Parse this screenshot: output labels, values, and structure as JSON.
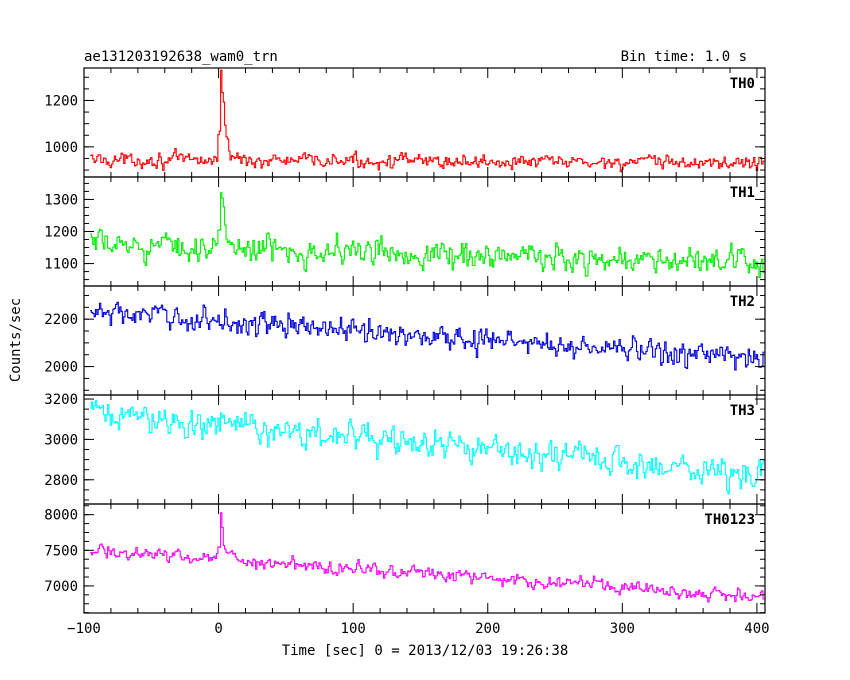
{
  "header": {
    "title": "ae131203192638_wam0_trn",
    "bin_time": "Bin time: 1.0 s"
  },
  "chart_data": {
    "type": "line",
    "xlabel": "Time [sec] 0 = 2013/12/03 19:26:38",
    "ylabel": "Counts/sec",
    "xlim": [
      -100,
      406
    ],
    "x_ticks": [
      -100,
      0,
      100,
      200,
      300,
      400
    ],
    "x_tick_labels": [
      "−100",
      "0",
      "100",
      "200",
      "300",
      "400"
    ],
    "panels": [
      {
        "name": "TH0",
        "color": "#ff0000",
        "ylim": [
          870,
          1340
        ],
        "ticks": [
          1000,
          1200
        ],
        "tick_labels": [
          "1000",
          "1200"
        ],
        "baseline_start": 945,
        "baseline_end": 930,
        "noise": 30,
        "peak": {
          "t": 2,
          "height": 400,
          "width": 3
        }
      },
      {
        "name": "TH1",
        "color": "#00ee00",
        "ylim": [
          1030,
          1370
        ],
        "ticks": [
          1100,
          1200,
          1300
        ],
        "tick_labels": [
          "1100",
          "1200",
          "1300"
        ],
        "baseline_start": 1160,
        "baseline_end": 1100,
        "noise": 40,
        "peak": {
          "t": 2,
          "height": 140,
          "width": 4
        }
      },
      {
        "name": "TH2",
        "color": "#0000dd",
        "ylim": [
          1880,
          2340
        ],
        "ticks": [
          2000,
          2200
        ],
        "tick_labels": [
          "2000",
          "2200"
        ],
        "baseline_start": 2230,
        "baseline_end": 2030,
        "noise": 50,
        "peak": {
          "t": 2,
          "height": 0,
          "width": 3
        }
      },
      {
        "name": "TH3",
        "color": "#00ffff",
        "ylim": [
          2680,
          3220
        ],
        "ticks": [
          2800,
          3000,
          3200
        ],
        "tick_labels": [
          "2800",
          "3000",
          "3200"
        ],
        "baseline_start": 3130,
        "baseline_end": 2820,
        "noise": 70,
        "peak": {
          "t": 2,
          "height": 60,
          "width": 4
        }
      },
      {
        "name": "TH0123",
        "color": "#ff00ff",
        "ylim": [
          6620,
          8150
        ],
        "ticks": [
          7000,
          7500,
          8000
        ],
        "tick_labels": [
          "7000",
          "7500",
          "8000"
        ],
        "baseline_start": 7500,
        "baseline_end": 6850,
        "noise": 90,
        "peak": {
          "t": 2,
          "height": 580,
          "width": 3
        }
      }
    ]
  }
}
